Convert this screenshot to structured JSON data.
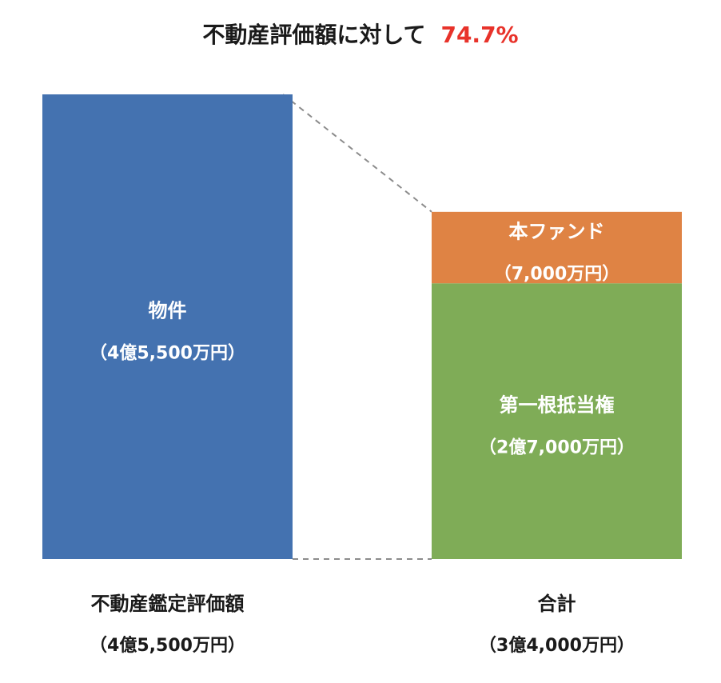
{
  "chart_data": {
    "type": "bar",
    "stacked": true,
    "title": {
      "prefix": "不動産評価額に対して",
      "highlight": "74.7%"
    },
    "unit": "万円",
    "categories": [
      {
        "name": "不動産鑑定評価額",
        "total_label": "（4億5,500万円）"
      },
      {
        "name": "合計",
        "total_label": "（3億4,000万円）"
      }
    ],
    "series": [
      {
        "name": "物件",
        "value_label": "（4億5,500万円）",
        "values": [
          45500,
          0
        ],
        "color": "#4472b0"
      },
      {
        "name": "第一根抵当権",
        "value_label": "（2億7,000万円）",
        "values": [
          0,
          27000
        ],
        "color": "#7fac57"
      },
      {
        "name": "本ファンド",
        "value_label": "（7,000万円）",
        "values": [
          0,
          7000
        ],
        "color": "#df8344"
      }
    ],
    "ylim": [
      0,
      45500
    ],
    "connectors": "dashed",
    "connector_color": "#8c8c8c"
  }
}
